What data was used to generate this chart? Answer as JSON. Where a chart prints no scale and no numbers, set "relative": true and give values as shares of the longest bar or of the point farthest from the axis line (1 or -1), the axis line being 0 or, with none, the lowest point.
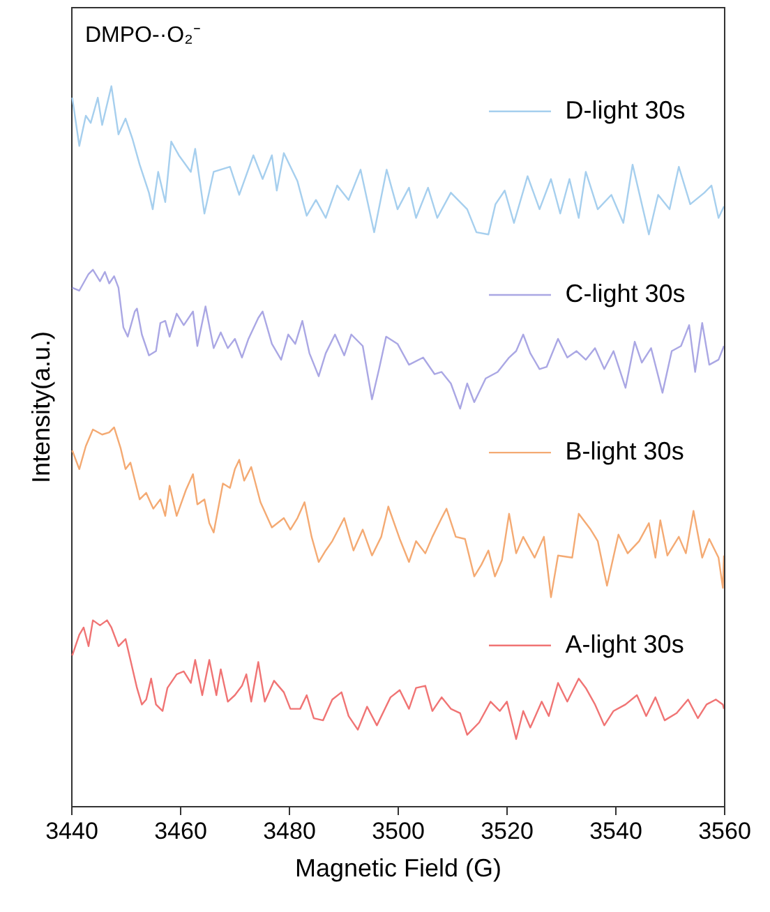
{
  "chart_data": {
    "type": "line",
    "title": "DMPO-·O₂⁻",
    "xlabel": "Magnetic Field (G)",
    "ylabel": "Intensity(a.u.)",
    "relative": true,
    "legend": "right",
    "xlim": [
      3440,
      3560
    ],
    "xticks": [
      3440,
      3460,
      3480,
      3500,
      3520,
      3540,
      3560
    ],
    "series": [
      {
        "name": "D-light 30s",
        "color": "#a6cfee",
        "x": [
          3440.2,
          3441.5,
          3442.7,
          3443.6,
          3444.9,
          3445.7,
          3447.4,
          3448.7,
          3450.0,
          3451.3,
          3452.6,
          3454.3,
          3455.0,
          3456.0,
          3457.3,
          3458.4,
          3459.8,
          3462.0,
          3462.8,
          3464.5,
          3466.2,
          3469.2,
          3470.9,
          3473.5,
          3475.2,
          3476.9,
          3477.8,
          3479.1,
          3481.6,
          3483.3,
          3485.0,
          3486.8,
          3488.9,
          3491.0,
          3493.2,
          3495.7,
          3498.0,
          3500.0,
          3502.1,
          3503.4,
          3505.6,
          3507.3,
          3509.8,
          3512.8,
          3514.5,
          3516.7,
          3518.0,
          3519.7,
          3521.4,
          3523.9,
          3526.1,
          3528.2,
          3529.9,
          3531.6,
          3533.3,
          3534.6,
          3536.8,
          3539.3,
          3541.5,
          3543.2,
          3544.9,
          3546.2,
          3547.9,
          3550.0,
          3551.7,
          3553.8,
          3556.4,
          3557.7,
          3559.0,
          3560.0
        ],
        "values": [
          0.984,
          0.917,
          0.959,
          0.949,
          0.984,
          0.946,
          1,
          0.933,
          0.955,
          0.926,
          0.891,
          0.852,
          0.829,
          0.881,
          0.839,
          0.923,
          0.904,
          0.881,
          0.913,
          0.823,
          0.881,
          0.888,
          0.849,
          0.904,
          0.871,
          0.904,
          0.855,
          0.907,
          0.868,
          0.82,
          0.842,
          0.817,
          0.862,
          0.842,
          0.884,
          0.797,
          0.884,
          0.829,
          0.859,
          0.817,
          0.859,
          0.817,
          0.852,
          0.829,
          0.797,
          0.794,
          0.836,
          0.855,
          0.81,
          0.875,
          0.829,
          0.871,
          0.823,
          0.871,
          0.817,
          0.881,
          0.829,
          0.849,
          0.81,
          0.891,
          0.836,
          0.794,
          0.849,
          0.829,
          0.888,
          0.836,
          0.852,
          0.862,
          0.817,
          0.833
        ]
      },
      {
        "name": "C-light 30s",
        "color": "#aaa7e4",
        "x": [
          3440.2,
          3441.5,
          3443.2,
          3444.0,
          3445.3,
          3446.2,
          3447.0,
          3447.9,
          3448.7,
          3449.6,
          3450.4,
          3451.7,
          3452.1,
          3453.0,
          3454.3,
          3455.6,
          3456.4,
          3457.3,
          3458.1,
          3459.4,
          3460.7,
          3462.4,
          3463.2,
          3464.7,
          3466.2,
          3467.5,
          3468.8,
          3470.1,
          3471.4,
          3472.6,
          3474.4,
          3475.2,
          3476.9,
          3478.6,
          3479.9,
          3481.2,
          3482.5,
          3483.8,
          3485.5,
          3486.8,
          3488.5,
          3490.2,
          3491.5,
          3493.6,
          3495.3,
          3496.6,
          3497.9,
          3500.0,
          3502.1,
          3504.7,
          3506.8,
          3508.1,
          3509.8,
          3511.5,
          3512.8,
          3514.1,
          3516.2,
          3518.4,
          3520.5,
          3521.8,
          3523.1,
          3524.4,
          3526.1,
          3527.4,
          3529.5,
          3531.2,
          3532.9,
          3534.6,
          3536.3,
          3538.0,
          3539.7,
          3541.9,
          3543.6,
          3544.9,
          3546.6,
          3548.7,
          3550.4,
          3552.1,
          3553.6,
          3554.7,
          3556.0,
          3557.3,
          3559.0,
          3560.0
        ],
        "values": [
          0.72,
          0.716,
          0.739,
          0.745,
          0.729,
          0.742,
          0.726,
          0.736,
          0.72,
          0.665,
          0.652,
          0.687,
          0.691,
          0.655,
          0.626,
          0.632,
          0.671,
          0.674,
          0.652,
          0.684,
          0.668,
          0.687,
          0.639,
          0.694,
          0.636,
          0.658,
          0.636,
          0.649,
          0.623,
          0.649,
          0.678,
          0.687,
          0.642,
          0.62,
          0.655,
          0.642,
          0.674,
          0.629,
          0.597,
          0.629,
          0.655,
          0.626,
          0.655,
          0.639,
          0.565,
          0.607,
          0.652,
          0.642,
          0.613,
          0.623,
          0.6,
          0.603,
          0.587,
          0.552,
          0.587,
          0.561,
          0.594,
          0.603,
          0.623,
          0.632,
          0.655,
          0.629,
          0.607,
          0.61,
          0.649,
          0.623,
          0.632,
          0.62,
          0.636,
          0.607,
          0.632,
          0.581,
          0.645,
          0.616,
          0.636,
          0.574,
          0.632,
          0.639,
          0.668,
          0.603,
          0.671,
          0.613,
          0.62,
          0.639
        ]
      },
      {
        "name": "B-light 30s",
        "color": "#f4aa73",
        "x": [
          3440.2,
          3441.5,
          3442.7,
          3444.0,
          3445.7,
          3447.0,
          3447.9,
          3449.1,
          3450.0,
          3450.9,
          3452.6,
          3453.8,
          3455.1,
          3456.4,
          3457.3,
          3458.1,
          3459.4,
          3461.1,
          3462.4,
          3463.2,
          3464.5,
          3465.4,
          3466.2,
          3467.9,
          3469.2,
          3470.1,
          3470.9,
          3471.8,
          3473.1,
          3474.8,
          3476.9,
          3479.1,
          3480.3,
          3481.6,
          3482.9,
          3484.2,
          3485.5,
          3486.8,
          3488.0,
          3490.2,
          3491.9,
          3493.6,
          3495.3,
          3497.0,
          3498.3,
          3500.4,
          3502.1,
          3503.4,
          3505.1,
          3506.4,
          3508.1,
          3509.0,
          3510.7,
          3512.4,
          3514.1,
          3515.4,
          3516.7,
          3517.9,
          3519.2,
          3520.5,
          3521.8,
          3523.1,
          3525.2,
          3526.9,
          3528.2,
          3529.5,
          3532.1,
          3533.3,
          3535.5,
          3536.8,
          3538.5,
          3540.6,
          3542.3,
          3544.4,
          3546.2,
          3547.4,
          3548.3,
          3549.6,
          3551.7,
          3553.0,
          3554.4,
          3556.0,
          3557.3,
          3559.0,
          3559.8,
          3560.0
        ],
        "values": [
          0.494,
          0.468,
          0.5,
          0.523,
          0.516,
          0.519,
          0.526,
          0.497,
          0.468,
          0.477,
          0.426,
          0.435,
          0.413,
          0.426,
          0.403,
          0.445,
          0.403,
          0.439,
          0.461,
          0.419,
          0.426,
          0.393,
          0.38,
          0.448,
          0.442,
          0.468,
          0.481,
          0.452,
          0.471,
          0.422,
          0.387,
          0.4,
          0.384,
          0.4,
          0.422,
          0.374,
          0.339,
          0.355,
          0.368,
          0.4,
          0.355,
          0.384,
          0.348,
          0.374,
          0.416,
          0.371,
          0.339,
          0.368,
          0.351,
          0.374,
          0.4,
          0.413,
          0.374,
          0.371,
          0.319,
          0.335,
          0.355,
          0.319,
          0.342,
          0.406,
          0.351,
          0.374,
          0.345,
          0.374,
          0.29,
          0.348,
          0.345,
          0.406,
          0.384,
          0.368,
          0.306,
          0.377,
          0.351,
          0.368,
          0.393,
          0.345,
          0.397,
          0.348,
          0.374,
          0.351,
          0.41,
          0.345,
          0.371,
          0.345,
          0.303,
          0.348
        ]
      },
      {
        "name": "A-light 30s",
        "color": "#f07474",
        "x": [
          3440.2,
          3441.5,
          3442.3,
          3443.2,
          3444.0,
          3445.3,
          3446.6,
          3447.4,
          3448.7,
          3450.0,
          3450.9,
          3452.1,
          3453.0,
          3453.8,
          3454.7,
          3455.6,
          3456.8,
          3457.7,
          3459.4,
          3460.7,
          3462.0,
          3462.8,
          3464.1,
          3465.4,
          3466.7,
          3467.5,
          3468.8,
          3470.1,
          3471.4,
          3472.2,
          3473.1,
          3474.4,
          3475.6,
          3477.3,
          3479.1,
          3480.3,
          3482.1,
          3483.3,
          3484.6,
          3486.3,
          3488.0,
          3489.7,
          3491.0,
          3492.7,
          3494.4,
          3496.2,
          3498.7,
          3500.4,
          3502.1,
          3503.4,
          3505.1,
          3506.4,
          3508.1,
          3509.8,
          3511.5,
          3512.8,
          3515.0,
          3517.1,
          3518.8,
          3520.1,
          3521.8,
          3523.1,
          3524.4,
          3526.5,
          3527.8,
          3529.5,
          3531.2,
          3533.3,
          3534.6,
          3536.3,
          3538.0,
          3539.7,
          3541.9,
          3544.0,
          3545.7,
          3547.4,
          3549.1,
          3551.3,
          3553.4,
          3555.2,
          3556.8,
          3558.5,
          3559.8,
          3560.0
        ],
        "values": [
          0.209,
          0.238,
          0.248,
          0.222,
          0.258,
          0.251,
          0.258,
          0.248,
          0.222,
          0.232,
          0.203,
          0.164,
          0.141,
          0.148,
          0.177,
          0.141,
          0.132,
          0.164,
          0.183,
          0.187,
          0.171,
          0.203,
          0.154,
          0.203,
          0.154,
          0.19,
          0.145,
          0.154,
          0.167,
          0.183,
          0.145,
          0.2,
          0.145,
          0.174,
          0.158,
          0.135,
          0.135,
          0.154,
          0.122,
          0.119,
          0.148,
          0.158,
          0.125,
          0.106,
          0.138,
          0.112,
          0.151,
          0.161,
          0.135,
          0.164,
          0.167,
          0.132,
          0.151,
          0.135,
          0.129,
          0.099,
          0.116,
          0.145,
          0.132,
          0.145,
          0.093,
          0.132,
          0.109,
          0.145,
          0.125,
          0.171,
          0.145,
          0.177,
          0.164,
          0.141,
          0.112,
          0.132,
          0.141,
          0.154,
          0.125,
          0.151,
          0.119,
          0.129,
          0.148,
          0.122,
          0.141,
          0.148,
          0.141,
          0.135
        ]
      }
    ]
  }
}
